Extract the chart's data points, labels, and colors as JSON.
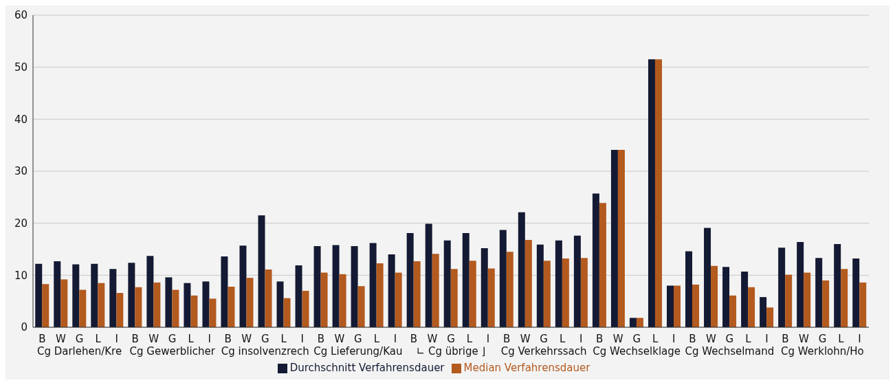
{
  "chart_data": {
    "type": "bar",
    "categories": [
      "B",
      "W",
      "G",
      "L",
      "I",
      "B",
      "W",
      "G",
      "L",
      "I",
      "B",
      "W",
      "G",
      "L",
      "I",
      "B",
      "W",
      "G",
      "L",
      "I",
      "B",
      "W",
      "G",
      "L",
      "I",
      "B",
      "W",
      "G",
      "L",
      "I",
      "B",
      "W",
      "G",
      "L",
      "I",
      "B",
      "W",
      "G",
      "L",
      "I",
      "B",
      "W",
      "G",
      "L",
      "I"
    ],
    "series": [
      {
        "name": "Durchschnitt Verfahrensdauer",
        "color": "#141a33",
        "values": [
          12.2,
          12.7,
          12.1,
          12.2,
          11.2,
          12.4,
          13.7,
          9.6,
          8.5,
          8.8,
          13.6,
          15.7,
          21.5,
          8.8,
          11.9,
          15.6,
          15.8,
          15.6,
          16.2,
          14.0,
          18.1,
          19.9,
          16.7,
          18.1,
          15.2,
          18.7,
          22.1,
          15.9,
          16.7,
          17.6,
          25.7,
          34.1,
          1.8,
          51.5,
          8.0,
          14.6,
          19.1,
          11.6,
          10.7,
          5.8,
          15.3,
          16.4,
          13.3,
          16.0,
          13.2
        ]
      },
      {
        "name": "Median Verfahrensdauer",
        "color": "#b35a1f",
        "values": [
          8.3,
          9.2,
          7.2,
          8.5,
          6.6,
          7.7,
          8.6,
          7.2,
          6.1,
          5.5,
          7.8,
          9.5,
          11.1,
          5.6,
          7.0,
          10.5,
          10.2,
          7.9,
          12.3,
          10.5,
          12.7,
          14.1,
          11.2,
          12.8,
          11.3,
          14.5,
          16.8,
          12.8,
          13.2,
          13.3,
          23.9,
          34.1,
          1.8,
          51.5,
          8.0,
          8.2,
          11.8,
          6.1,
          7.7,
          3.8,
          10.1,
          10.5,
          9.0,
          11.2,
          8.6
        ]
      }
    ],
    "annotations": [
      "Cg Darlehen/Kre",
      "Cg Gewerblicher",
      "Cg insolvenzrech",
      "Cg Lieferung/Kau",
      "∟ Cg übrige ⌋",
      "Cg Verkehrssach",
      "Cg Wechselklage",
      "Cg Wechselmand",
      "Cg Werklohn/Ho"
    ],
    "ylim": [
      0,
      60
    ],
    "yticks": [
      0,
      10,
      20,
      30,
      40,
      50,
      60
    ],
    "grid": "y",
    "legend": "bottom"
  }
}
